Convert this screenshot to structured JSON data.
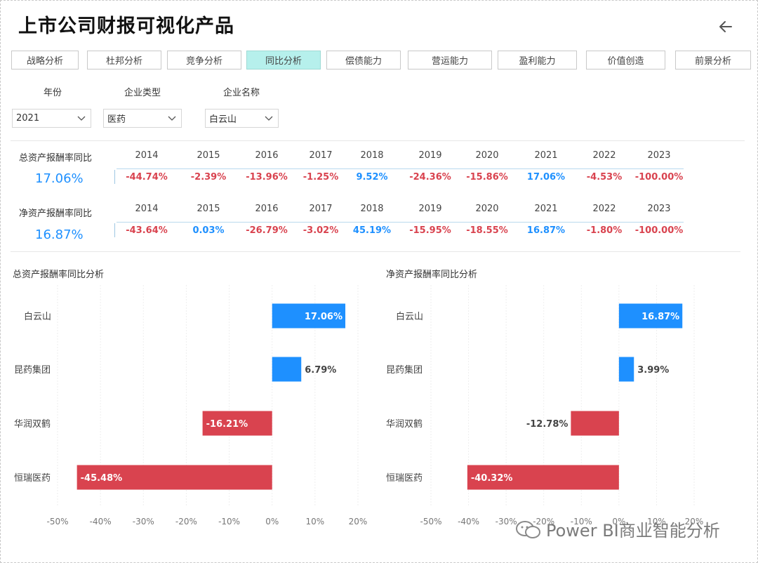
{
  "title": "上市公司财报可视化产品",
  "tabs": [
    {
      "label": "战略分析",
      "active": false
    },
    {
      "label": "杜邦分析",
      "active": false
    },
    {
      "label": "竞争分析",
      "active": false
    },
    {
      "label": "同比分析",
      "active": true
    },
    {
      "label": "偿债能力",
      "active": false
    },
    {
      "label": "营运能力",
      "active": false
    },
    {
      "label": "盈利能力",
      "active": false
    },
    {
      "label": "价值创造",
      "active": false
    },
    {
      "label": "前景分析",
      "active": false
    }
  ],
  "filters": {
    "year": {
      "label": "年份",
      "value": "2021"
    },
    "type": {
      "label": "企业类型",
      "value": "医药"
    },
    "name": {
      "label": "企业名称",
      "value": "白云山"
    }
  },
  "kpis": [
    {
      "label": "总资产报酬率同比",
      "value": "17.06%",
      "years": [
        "2014",
        "2015",
        "2016",
        "2017",
        "2018",
        "2019",
        "2020",
        "2021",
        "2022",
        "2023"
      ],
      "values": [
        "-44.74%",
        "-2.39%",
        "-13.96%",
        "-1.25%",
        "9.52%",
        "-24.36%",
        "-15.86%",
        "17.06%",
        "-4.53%",
        "-100.00%"
      ]
    },
    {
      "label": "净资产报酬率同比",
      "value": "16.87%",
      "years": [
        "2014",
        "2015",
        "2016",
        "2017",
        "2018",
        "2019",
        "2020",
        "2021",
        "2022",
        "2023"
      ],
      "values": [
        "-43.64%",
        "0.03%",
        "-26.79%",
        "-3.02%",
        "45.19%",
        "-15.95%",
        "-18.55%",
        "16.87%",
        "-1.80%",
        "-100.00%"
      ]
    }
  ],
  "colors": {
    "positive": "#1e90ff",
    "negative": "#d9434f",
    "accent": "#b6f0ec"
  },
  "chart_data": [
    {
      "type": "bar",
      "orientation": "horizontal",
      "title": "总资产报酬率同比分析",
      "categories": [
        "白云山",
        "昆药集团",
        "华润双鹤",
        "恒瑞医药"
      ],
      "values": [
        17.06,
        6.79,
        -16.21,
        -45.48
      ],
      "labels": [
        "17.06%",
        "6.79%",
        "-16.21%",
        "-45.48%"
      ],
      "xlim": [
        -50,
        20
      ],
      "xticks": [
        -50,
        -40,
        -30,
        -20,
        -10,
        0,
        10,
        20
      ],
      "xticklabels": [
        "-50%",
        "-40%",
        "-30%",
        "-20%",
        "-10%",
        "0%",
        "10%",
        "20%"
      ],
      "grid": true
    },
    {
      "type": "bar",
      "orientation": "horizontal",
      "title": "净资产报酬率同比分析",
      "categories": [
        "白云山",
        "昆药集团",
        "华润双鹤",
        "恒瑞医药"
      ],
      "values": [
        16.87,
        3.99,
        -12.78,
        -40.32
      ],
      "labels": [
        "16.87%",
        "3.99%",
        "-12.78%",
        "-40.32%"
      ],
      "xlim": [
        -50,
        20
      ],
      "xticks": [
        -50,
        -40,
        -30,
        -20,
        -10,
        0,
        10,
        20
      ],
      "xticklabels": [
        "-50%",
        "-40%",
        "-30%",
        "-20%",
        "-10%",
        "0%",
        "10%",
        "20%"
      ],
      "grid": true
    }
  ],
  "watermark": "Power BI商业智能分析"
}
